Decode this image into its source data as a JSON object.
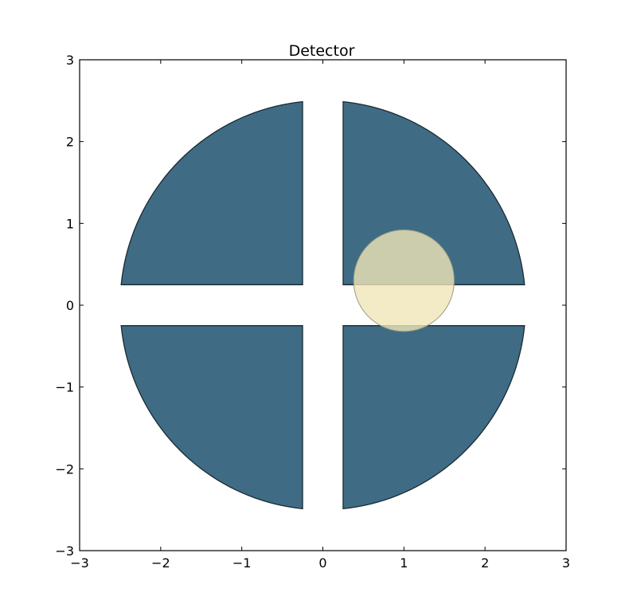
{
  "chart_data": {
    "type": "other",
    "title": "Detector",
    "xlabel": "",
    "ylabel": "",
    "xlim": [
      -3,
      3
    ],
    "ylim": [
      -3,
      3
    ],
    "grid": false,
    "x_ticks": [
      -3,
      -2,
      -1,
      0,
      1,
      2,
      3
    ],
    "y_ticks": [
      -3,
      -2,
      -1,
      0,
      1,
      2,
      3
    ],
    "x_tick_labels": [
      "−3",
      "−2",
      "−1",
      "0",
      "1",
      "2",
      "3"
    ],
    "y_tick_labels": [
      "−3",
      "−2",
      "−1",
      "0",
      "1",
      "2",
      "3"
    ],
    "detector": {
      "radius": 2.5,
      "gap_half_width": 0.25,
      "color": "#3f6c84",
      "edge_color": "#1a2a33",
      "quadrants": [
        "top-left",
        "top-right",
        "bottom-left",
        "bottom-right"
      ]
    },
    "beam_spot": {
      "center": [
        1.0,
        0.3
      ],
      "radius": 0.62,
      "color": "#efe6b8",
      "opacity": 0.8,
      "edge_color": "#9a9a80"
    }
  }
}
